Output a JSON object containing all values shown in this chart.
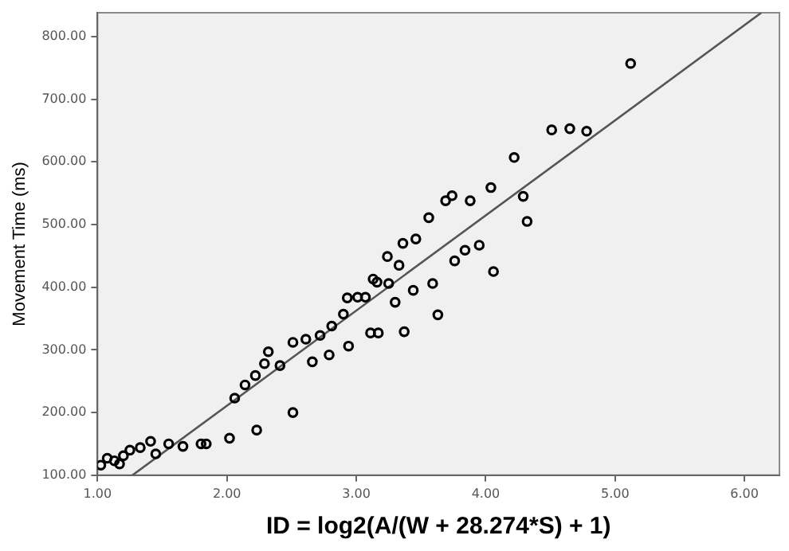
{
  "chart_data": {
    "type": "scatter",
    "xlabel": "ID = log2(A/(W + 28.274*S) + 1)",
    "ylabel": "Movement Time (ms)",
    "xlim": [
      1,
      6.27
    ],
    "ylim": [
      100,
      838
    ],
    "xticks": [
      {
        "value": 1,
        "label": "1.00"
      },
      {
        "value": 2,
        "label": "2.00"
      },
      {
        "value": 3,
        "label": "3.00"
      },
      {
        "value": 4,
        "label": "4.00"
      },
      {
        "value": 5,
        "label": "5.00"
      },
      {
        "value": 6,
        "label": "6.00"
      }
    ],
    "yticks": [
      {
        "value": 100,
        "label": "100.00"
      },
      {
        "value": 200,
        "label": "200.00"
      },
      {
        "value": 300,
        "label": "300.00"
      },
      {
        "value": 400,
        "label": "400.00"
      },
      {
        "value": 500,
        "label": "500.00"
      },
      {
        "value": 600,
        "label": "600.00"
      },
      {
        "value": 700,
        "label": "700.00"
      },
      {
        "value": 800,
        "label": "800.00"
      }
    ],
    "grid": false,
    "series": [
      {
        "marker": "circle",
        "color": "#000000",
        "x": [
          1.025,
          1.075,
          1.13,
          1.17,
          1.2,
          1.25,
          1.33,
          1.41,
          1.45,
          1.55,
          1.66,
          1.8,
          1.84,
          2.02,
          2.23,
          2.51,
          2.06,
          2.14,
          2.22,
          2.29,
          2.32,
          2.41,
          2.51,
          2.61,
          2.66,
          2.72,
          2.79,
          2.81,
          2.9,
          2.93,
          2.94,
          3.01,
          3.07,
          3.11,
          3.13,
          3.16,
          3.17,
          3.25,
          3.3,
          3.24,
          3.33,
          3.36,
          3.37,
          3.44,
          3.46,
          3.56,
          3.59,
          3.63,
          3.69,
          3.74,
          3.88,
          3.76,
          3.84,
          3.95,
          4.04,
          4.06,
          4.22,
          4.29,
          4.32,
          4.51,
          4.65,
          4.78,
          5.12
        ],
        "values": [
          116,
          127,
          123,
          118,
          131,
          140,
          144,
          154,
          134,
          150,
          146,
          150,
          150,
          159,
          172,
          200,
          223,
          244,
          259,
          278,
          297,
          275,
          312,
          317,
          281,
          323,
          292,
          338,
          357,
          383,
          306,
          384,
          384,
          327,
          413,
          408,
          327,
          406,
          376,
          449,
          435,
          470,
          329,
          395,
          477,
          511,
          406,
          356,
          538,
          546,
          538,
          442,
          459,
          467,
          559,
          425,
          607,
          545,
          505,
          651,
          653,
          649,
          757
        ]
      },
      {
        "type": "line",
        "color": "#555555",
        "x": [
          1.27,
          6.13
        ],
        "values": [
          100,
          838
        ]
      }
    ]
  }
}
